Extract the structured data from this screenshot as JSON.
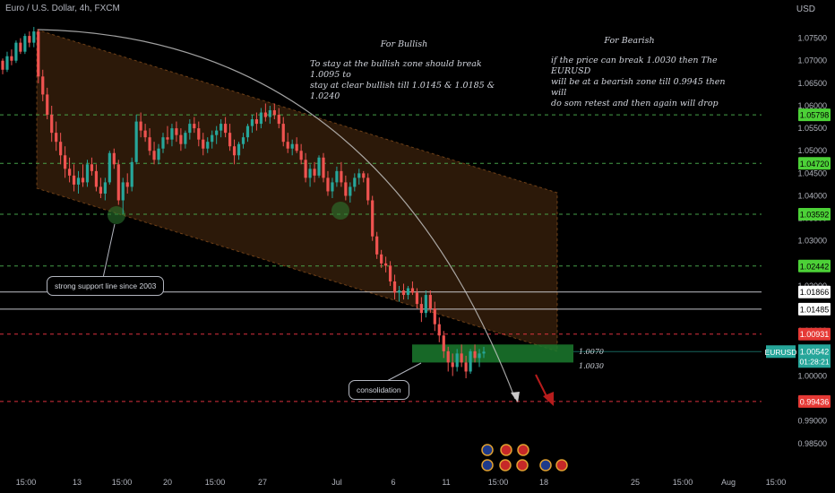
{
  "header": {
    "symbol_line": "Euro / U.S. Dollar, 4h, FXCM",
    "currency": "USD"
  },
  "notes": {
    "bullish": {
      "title": "For Bullish",
      "line1": "To stay at the bullish zone should break 1.0095 to",
      "line2": "stay at clear bullish till 1.0145 & 1.0185 & 1.0240"
    },
    "bearish": {
      "title": "For Bearish",
      "line1": "if the price can break 1.0030 then The EURUSD",
      "line2": "will be at a bearish zone till 0.9945 then will",
      "line3": "do som retest and then again will drop"
    },
    "support": "strong support line since 2003",
    "consolidation": "consolidation",
    "zone_top": "1.0070",
    "zone_bottom": "1.0030"
  },
  "colors": {
    "up": "#26a69a",
    "down": "#ef5350",
    "channel": "#c8742a",
    "green_level": "#4caf50",
    "red_level": "#f23645",
    "ticker": "#26a69a"
  },
  "chart_data": {
    "type": "candlestick",
    "symbol": "EURUSD",
    "timeframe": "4h",
    "last_price": "1.00542",
    "countdown": "01:28:21",
    "ylim": [
      0.98,
      1.0795
    ],
    "y_ticks": [
      "1.07500",
      "1.07000",
      "1.06500",
      "1.06000",
      "1.05500",
      "1.05000",
      "1.04500",
      "1.04000",
      "1.03500",
      "1.03000",
      "1.02500",
      "1.02000",
      "1.01500",
      "1.01000",
      "1.00500",
      "1.00000",
      "0.99500",
      "0.99000",
      "0.98500"
    ],
    "x_ticks": [
      "15:00",
      "13",
      "15:00",
      "20",
      "15:00",
      "27",
      "Jul",
      "6",
      "11",
      "15:00",
      "18",
      "25",
      "15:00",
      "Aug",
      "15:00"
    ],
    "levels": [
      {
        "value": "1.05798",
        "type": "green"
      },
      {
        "value": "1.04720",
        "type": "green"
      },
      {
        "value": "1.03592",
        "type": "green"
      },
      {
        "value": "1.02442",
        "type": "green"
      },
      {
        "value": "1.01866",
        "type": "white"
      },
      {
        "value": "1.01485",
        "type": "white"
      },
      {
        "value": "1.00931",
        "type": "red"
      },
      {
        "value": "0.99436",
        "type": "red"
      }
    ],
    "candles": [
      [
        1.07,
        1.0705,
        1.067,
        1.068
      ],
      [
        1.068,
        1.072,
        1.0675,
        1.071
      ],
      [
        1.071,
        1.0725,
        1.069,
        1.07
      ],
      [
        1.07,
        1.0745,
        1.0695,
        1.074
      ],
      [
        1.074,
        1.075,
        1.0715,
        1.072
      ],
      [
        1.072,
        1.076,
        1.0715,
        1.0755
      ],
      [
        1.0755,
        1.0765,
        1.073,
        1.074
      ],
      [
        1.074,
        1.0775,
        1.073,
        1.0765
      ],
      [
        1.0765,
        1.077,
        1.065,
        1.0665
      ],
      [
        1.0665,
        1.068,
        1.061,
        1.0625
      ],
      [
        1.0625,
        1.064,
        1.057,
        1.058
      ],
      [
        1.058,
        1.06,
        1.052,
        1.054
      ],
      [
        1.054,
        1.0565,
        1.05,
        1.052
      ],
      [
        1.052,
        1.054,
        1.047,
        1.049
      ],
      [
        1.049,
        1.051,
        1.044,
        1.046
      ],
      [
        1.046,
        1.0485,
        1.043,
        1.0445
      ],
      [
        1.0445,
        1.047,
        1.041,
        1.0425
      ],
      [
        1.0425,
        1.0455,
        1.0405,
        1.044
      ],
      [
        1.044,
        1.047,
        1.042,
        1.043
      ],
      [
        1.043,
        1.048,
        1.042,
        1.047
      ],
      [
        1.047,
        1.0485,
        1.0445,
        1.0455
      ],
      [
        1.0455,
        1.047,
        1.041,
        1.042
      ],
      [
        1.042,
        1.044,
        1.0395,
        1.0405
      ],
      [
        1.0405,
        1.044,
        1.039,
        1.043
      ],
      [
        1.043,
        1.05,
        1.0425,
        1.0495
      ],
      [
        1.0495,
        1.0505,
        1.046,
        1.047
      ],
      [
        1.047,
        1.048,
        1.038,
        1.039
      ],
      [
        1.039,
        1.044,
        1.036,
        1.043
      ],
      [
        1.043,
        1.045,
        1.0405,
        1.042
      ],
      [
        1.042,
        1.0485,
        1.041,
        1.0475
      ],
      [
        1.0475,
        1.058,
        1.047,
        1.0565
      ],
      [
        1.0565,
        1.0585,
        1.053,
        1.0545
      ],
      [
        1.0545,
        1.056,
        1.052,
        1.053
      ],
      [
        1.053,
        1.055,
        1.049,
        1.05
      ],
      [
        1.05,
        1.052,
        1.047,
        1.048
      ],
      [
        1.048,
        1.0515,
        1.047,
        1.0505
      ],
      [
        1.0505,
        1.054,
        1.0495,
        1.053
      ],
      [
        1.053,
        1.0555,
        1.0515,
        1.0525
      ],
      [
        1.0525,
        1.056,
        1.051,
        1.055
      ],
      [
        1.055,
        1.0565,
        1.052,
        1.0535
      ],
      [
        1.0535,
        1.055,
        1.05,
        1.0515
      ],
      [
        1.0515,
        1.0545,
        1.0505,
        1.054
      ],
      [
        1.054,
        1.057,
        1.0525,
        1.056
      ],
      [
        1.056,
        1.0575,
        1.054,
        1.055
      ],
      [
        1.055,
        1.0565,
        1.051,
        1.0525
      ],
      [
        1.0525,
        1.054,
        1.049,
        1.0505
      ],
      [
        1.0505,
        1.053,
        1.0495,
        1.052
      ],
      [
        1.052,
        1.0545,
        1.0505,
        1.0535
      ],
      [
        1.0535,
        1.0555,
        1.0515,
        1.0545
      ],
      [
        1.0545,
        1.057,
        1.053,
        1.056
      ],
      [
        1.056,
        1.0575,
        1.053,
        1.054
      ],
      [
        1.054,
        1.056,
        1.05,
        1.051
      ],
      [
        1.051,
        1.0525,
        1.047,
        1.049
      ],
      [
        1.049,
        1.052,
        1.048,
        1.0515
      ],
      [
        1.0515,
        1.054,
        1.0505,
        1.053
      ],
      [
        1.053,
        1.056,
        1.052,
        1.0555
      ],
      [
        1.0555,
        1.058,
        1.054,
        1.057
      ],
      [
        1.057,
        1.0585,
        1.0545,
        1.056
      ],
      [
        1.056,
        1.0595,
        1.055,
        1.0585
      ],
      [
        1.0585,
        1.0605,
        1.0565,
        1.0575
      ],
      [
        1.0575,
        1.06,
        1.056,
        1.059
      ],
      [
        1.059,
        1.0605,
        1.057,
        1.058
      ],
      [
        1.058,
        1.0595,
        1.055,
        1.056
      ],
      [
        1.056,
        1.0575,
        1.051,
        1.052
      ],
      [
        1.052,
        1.054,
        1.0495,
        1.0505
      ],
      [
        1.0505,
        1.0525,
        1.049,
        1.0515
      ],
      [
        1.0515,
        1.053,
        1.0495,
        1.05
      ],
      [
        1.05,
        1.0515,
        1.047,
        1.048
      ],
      [
        1.048,
        1.0495,
        1.043,
        1.044
      ],
      [
        1.044,
        1.047,
        1.042,
        1.046
      ],
      [
        1.046,
        1.0475,
        1.043,
        1.0445
      ],
      [
        1.0445,
        1.049,
        1.044,
        1.0485
      ],
      [
        1.0485,
        1.0495,
        1.043,
        1.044
      ],
      [
        1.044,
        1.0455,
        1.04,
        1.041
      ],
      [
        1.041,
        1.044,
        1.0395,
        1.043
      ],
      [
        1.043,
        1.0465,
        1.042,
        1.0455
      ],
      [
        1.0455,
        1.0475,
        1.042,
        1.043
      ],
      [
        1.043,
        1.0445,
        1.039,
        1.04
      ],
      [
        1.04,
        1.043,
        1.0385,
        1.042
      ],
      [
        1.042,
        1.045,
        1.041,
        1.044
      ],
      [
        1.044,
        1.046,
        1.0425,
        1.045
      ],
      [
        1.045,
        1.0455,
        1.043,
        1.044
      ],
      [
        1.044,
        1.045,
        1.038,
        1.039
      ],
      [
        1.039,
        1.04,
        1.03,
        1.031
      ],
      [
        1.031,
        1.032,
        1.026,
        1.027
      ],
      [
        1.027,
        1.028,
        1.024,
        1.025
      ],
      [
        1.025,
        1.0265,
        1.023,
        1.0245
      ],
      [
        1.0245,
        1.0255,
        1.02,
        1.021
      ],
      [
        1.021,
        1.0225,
        1.017,
        1.0185
      ],
      [
        1.0185,
        1.02,
        1.0165,
        1.019
      ],
      [
        1.019,
        1.0205,
        1.017,
        1.018
      ],
      [
        1.018,
        1.02,
        1.017,
        1.0195
      ],
      [
        1.0195,
        1.021,
        1.018,
        1.0185
      ],
      [
        1.0185,
        1.0195,
        1.015,
        1.016
      ],
      [
        1.016,
        1.0175,
        1.012,
        1.014
      ],
      [
        1.014,
        1.019,
        1.013,
        1.018
      ],
      [
        1.018,
        1.019,
        1.014,
        1.015
      ],
      [
        1.015,
        1.0165,
        1.01,
        1.0115
      ],
      [
        1.0115,
        1.013,
        1.0075,
        1.009
      ],
      [
        1.009,
        1.01,
        1.004,
        1.0055
      ],
      [
        1.0055,
        1.0065,
        1.001,
        1.003
      ],
      [
        1.003,
        1.005,
        1.0,
        1.002
      ],
      [
        1.002,
        1.006,
        1.001,
        1.005
      ],
      [
        1.005,
        1.007,
        1.002,
        1.003
      ],
      [
        1.003,
        1.0045,
        0.9995,
        1.001
      ],
      [
        1.001,
        1.006,
        1.0005,
        1.0055
      ],
      [
        1.0055,
        1.007,
        1.003,
        1.004
      ],
      [
        1.004,
        1.006,
        1.002,
        1.005
      ],
      [
        1.005,
        1.0065,
        1.004,
        1.0054
      ]
    ]
  }
}
